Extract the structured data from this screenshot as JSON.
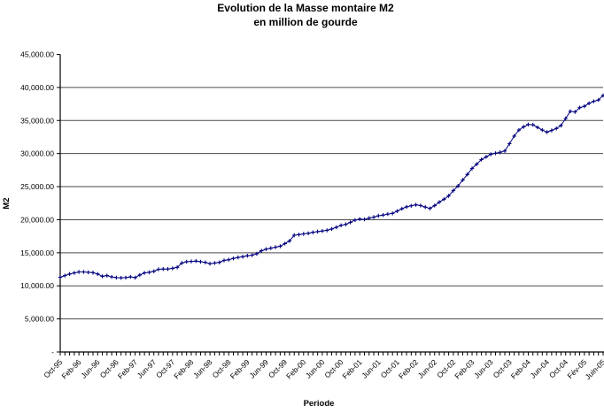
{
  "title": {
    "line1": "Evolution de la Masse montaire M2",
    "line2": "en million de gourde"
  },
  "chart_data": {
    "type": "line",
    "title": "Evolution de la Masse montaire M2 — en million de gourde",
    "xlabel": "Periode",
    "ylabel": "M2",
    "x_start": "Oct-1995",
    "x_end": "Jun-2005",
    "frequency": "monthly",
    "ylim": [
      0,
      45000
    ],
    "y_step": 5000,
    "grid": "horizontal",
    "legend": "none",
    "line_color": "#000080",
    "marker": "plus",
    "y_tick_labels": [
      "-",
      "5,000.00",
      "10,000.00",
      "15,000.00",
      "20,000.00",
      "25,000.00",
      "30,000.00",
      "35,000.00",
      "40,000.00",
      "45,000.00"
    ],
    "x_tick_labels": [
      "Oct-95",
      "Feb-96",
      "Jun-96",
      "Oct-96",
      "Feb-97",
      "Jun-97",
      "Oct-97",
      "Feb-98",
      "Jun-98",
      "Oct-98",
      "Feb-99",
      "Jun-99",
      "Oct-99",
      "Feb-00",
      "Jun-00",
      "Oct-00",
      "Feb-01",
      "Jun-01",
      "Oct-01",
      "Feb-02",
      "Jun-02",
      "Oct-02",
      "Feb-03",
      "Jun-03",
      "Oct-03",
      "Feb-04",
      "Jun-04",
      "Oct-04",
      "Fév-05",
      "Juin-05"
    ],
    "x_label_every_n_months": 4,
    "series": [
      {
        "name": "M2 (millions de gourdes)",
        "values": [
          11300,
          11550,
          11800,
          11950,
          12100,
          12100,
          12050,
          12000,
          11800,
          11450,
          11550,
          11350,
          11250,
          11200,
          11250,
          11350,
          11250,
          11650,
          11950,
          12050,
          12200,
          12500,
          12550,
          12550,
          12650,
          12800,
          13450,
          13650,
          13700,
          13750,
          13650,
          13550,
          13350,
          13450,
          13550,
          13850,
          13950,
          14150,
          14300,
          14400,
          14550,
          14650,
          14850,
          15300,
          15550,
          15700,
          15850,
          16000,
          16400,
          16800,
          17650,
          17750,
          17850,
          17950,
          18100,
          18200,
          18300,
          18400,
          18600,
          18850,
          19150,
          19300,
          19600,
          19950,
          20100,
          20050,
          20250,
          20400,
          20600,
          20700,
          20850,
          20950,
          21300,
          21650,
          21950,
          22100,
          22250,
          22150,
          21900,
          21700,
          22150,
          22650,
          23100,
          23600,
          24400,
          25100,
          26000,
          26850,
          27750,
          28400,
          29100,
          29500,
          29900,
          30050,
          30200,
          30400,
          31500,
          32650,
          33550,
          34050,
          34400,
          34350,
          33950,
          33550,
          33250,
          33500,
          33800,
          34250,
          35300,
          36400,
          36300,
          36950,
          37150,
          37600,
          37900,
          38100,
          38800
        ]
      }
    ]
  }
}
